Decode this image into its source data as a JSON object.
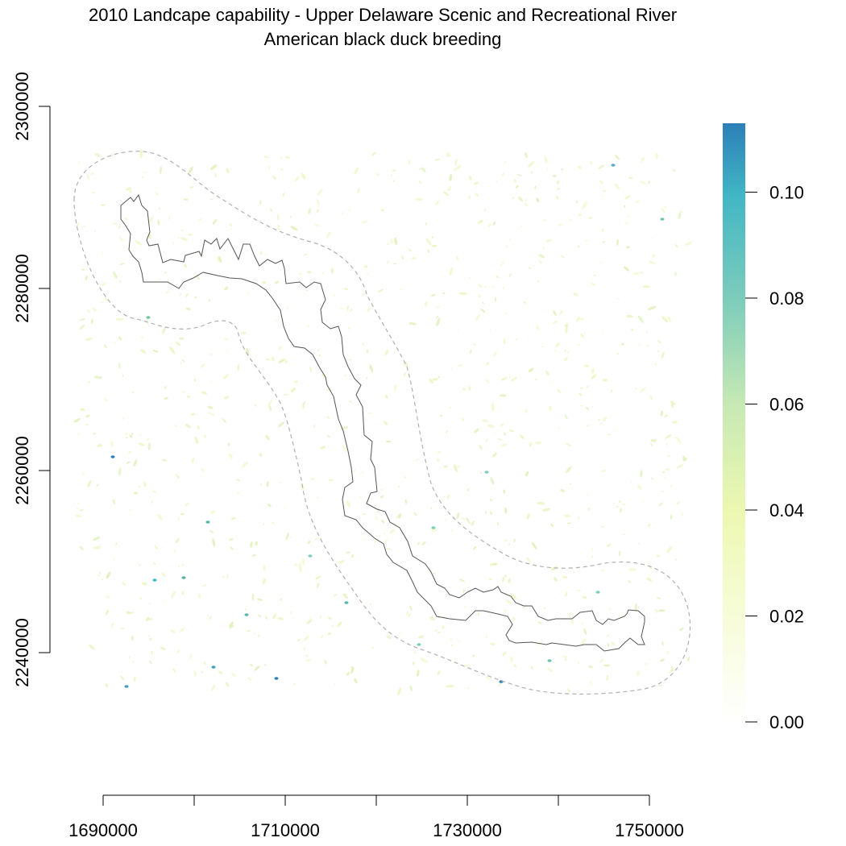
{
  "map": {
    "title": "2010 Landcape capability - Upper Delaware Scenic and Recreational River",
    "subtitle": "American black duck breeding"
  },
  "axes": {
    "x_ticks": [
      1690000,
      1700000,
      1710000,
      1720000,
      1730000,
      1740000,
      1750000
    ],
    "x_tick_labels": [
      "1690000",
      "1710000",
      "1730000",
      "1750000"
    ],
    "y_ticks": [
      2240000,
      2260000,
      2280000,
      2300000
    ],
    "y_tick_labels": [
      "2240000",
      "2260000",
      "2280000",
      "2300000"
    ]
  },
  "legend": {
    "min": 0.0,
    "max": 0.113,
    "tick_labels": [
      "0.00",
      "0.02",
      "0.04",
      "0.06",
      "0.08",
      "0.10"
    ],
    "tick_values": [
      0.0,
      0.02,
      0.04,
      0.06,
      0.08,
      0.1
    ],
    "colors": [
      "#ffffff",
      "#f7fcd8",
      "#edf8b1",
      "#c7e9b4",
      "#7fcdbb",
      "#41b6c4",
      "#2c7fb8"
    ]
  },
  "colors": {
    "boundary": "#555555",
    "buffer": "#b0b0b0",
    "low_habitat": "#e3f0a8",
    "high_habitat": "#2c7fb8"
  }
}
